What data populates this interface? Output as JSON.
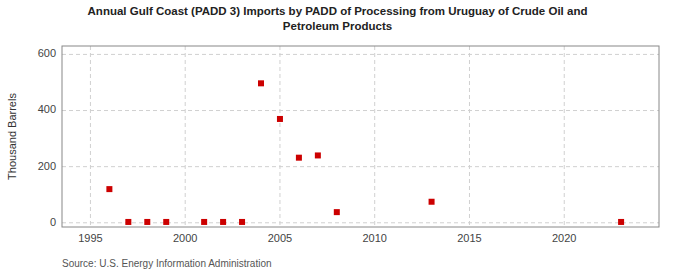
{
  "chart_data": {
    "type": "scatter",
    "title": "Annual Gulf Coast (PADD 3) Imports by PADD of Processing from Uruguay of Crude Oil and\nPetroleum Products",
    "y_label": "Thousand Barrels",
    "annotations": [
      "Source: U.S. Energy Information Administration"
    ],
    "x": [
      1996,
      1997,
      1998,
      1999,
      2001,
      2002,
      2003,
      2004,
      2005,
      2006,
      2007,
      2008,
      2013,
      2023
    ],
    "values": [
      120,
      3,
      3,
      3,
      3,
      3,
      3,
      497,
      370,
      232,
      240,
      38,
      75,
      3
    ],
    "color": "#cc0000",
    "marker": "square",
    "xlim": [
      1993.5,
      2025
    ],
    "ylim": [
      -15,
      630
    ],
    "xticks": [
      1995,
      2000,
      2005,
      2010,
      2015,
      2020
    ],
    "yticks": [
      0,
      200,
      400,
      600
    ],
    "grid": true
  }
}
